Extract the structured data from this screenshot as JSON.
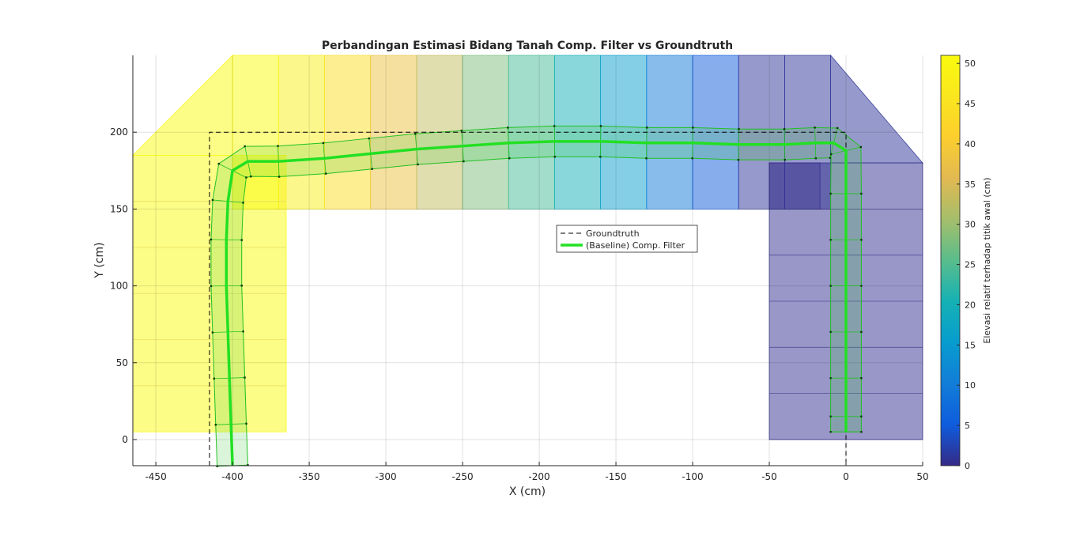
{
  "chart_data": {
    "type": "line",
    "title": "Perbandingan Estimasi Bidang Tanah Comp. Filter vs Groundtruth",
    "xlabel": "X (cm)",
    "ylabel": "Y (cm)",
    "xlim": [
      -465,
      50
    ],
    "ylim": [
      -17,
      250
    ],
    "xticks": [
      -450,
      -400,
      -350,
      -300,
      -250,
      -200,
      -150,
      -100,
      -50,
      0,
      50
    ],
    "yticks": [
      0,
      50,
      100,
      150,
      200
    ],
    "grid": true,
    "legend": {
      "placement": "center",
      "entries": [
        "Groundtruth",
        "(Baseline) Comp. Filter"
      ]
    },
    "colorbar": {
      "label": "Elevasi relatif terhadap titik awal (cm)",
      "limits": [
        0,
        51
      ],
      "ticks": [
        0,
        5,
        10,
        15,
        20,
        25,
        30,
        35,
        40,
        45,
        50
      ],
      "colormap": "parula"
    },
    "series": [
      {
        "name": "Groundtruth",
        "style": "dashed",
        "color": "#000000",
        "x": [
          -415,
          -415,
          0,
          0
        ],
        "y": [
          -17,
          200,
          200,
          -17
        ]
      },
      {
        "name": "(Baseline) Comp. Filter",
        "style": "solid",
        "color": "#22e022",
        "x": [
          -400,
          -401,
          -402,
          -403,
          -404,
          -404,
          -403,
          -400,
          -390,
          -370,
          -340,
          -310,
          -280,
          -250,
          -220,
          -190,
          -160,
          -130,
          -100,
          -70,
          -40,
          -20,
          -8,
          0,
          0,
          0,
          0,
          0,
          0,
          0,
          0
        ],
        "y": [
          -17,
          10,
          40,
          70,
          100,
          130,
          155,
          175,
          181,
          181,
          183,
          186,
          189,
          191,
          193,
          194,
          194,
          193,
          193,
          192,
          192,
          193,
          193,
          188,
          160,
          130,
          100,
          70,
          40,
          15,
          5
        ]
      }
    ],
    "surface_patches": [
      {
        "x": [
          -465,
          -465,
          -365,
          -365
        ],
        "y": [
          5,
          185,
          185,
          5
        ],
        "elevation": 51
      },
      {
        "x": [
          -465,
          -400,
          -400
        ],
        "y": [
          185,
          250,
          185
        ],
        "elevation": 51
      },
      {
        "x": [
          -400,
          -400,
          -370,
          -370
        ],
        "y": [
          150,
          250,
          250,
          150
        ],
        "elevation": 51
      },
      {
        "x": [
          -370,
          -370,
          -340,
          -340
        ],
        "y": [
          150,
          250,
          250,
          150
        ],
        "elevation": 48
      },
      {
        "x": [
          -340,
          -340,
          -310,
          -310
        ],
        "y": [
          150,
          250,
          250,
          150
        ],
        "elevation": 44
      },
      {
        "x": [
          -310,
          -310,
          -280,
          -280
        ],
        "y": [
          150,
          250,
          250,
          150
        ],
        "elevation": 38
      },
      {
        "x": [
          -280,
          -280,
          -250,
          -250
        ],
        "y": [
          150,
          250,
          250,
          150
        ],
        "elevation": 33
      },
      {
        "x": [
          -250,
          -250,
          -220,
          -220
        ],
        "y": [
          150,
          250,
          250,
          150
        ],
        "elevation": 28
      },
      {
        "x": [
          -220,
          -220,
          -190,
          -190
        ],
        "y": [
          150,
          250,
          250,
          150
        ],
        "elevation": 24
      },
      {
        "x": [
          -190,
          -190,
          -160,
          -160
        ],
        "y": [
          150,
          250,
          250,
          150
        ],
        "elevation": 20
      },
      {
        "x": [
          -160,
          -160,
          -130,
          -130
        ],
        "y": [
          150,
          250,
          250,
          150
        ],
        "elevation": 16
      },
      {
        "x": [
          -130,
          -130,
          -100,
          -100
        ],
        "y": [
          150,
          250,
          250,
          150
        ],
        "elevation": 10
      },
      {
        "x": [
          -100,
          -100,
          -70,
          -70
        ],
        "y": [
          150,
          250,
          250,
          150
        ],
        "elevation": 5
      },
      {
        "x": [
          -70,
          -70,
          -40,
          -40
        ],
        "y": [
          150,
          250,
          250,
          150
        ],
        "elevation": 1
      },
      {
        "x": [
          -40,
          -40,
          -10,
          -10
        ],
        "y": [
          150,
          250,
          250,
          150
        ],
        "elevation": 1
      },
      {
        "x": [
          -10,
          -10,
          50,
          50
        ],
        "y": [
          180,
          250,
          180,
          180
        ],
        "elevation": 1
      },
      {
        "x": [
          -50,
          -50,
          50,
          50
        ],
        "y": [
          0,
          180,
          180,
          0
        ],
        "elevation": 0.5
      }
    ]
  }
}
